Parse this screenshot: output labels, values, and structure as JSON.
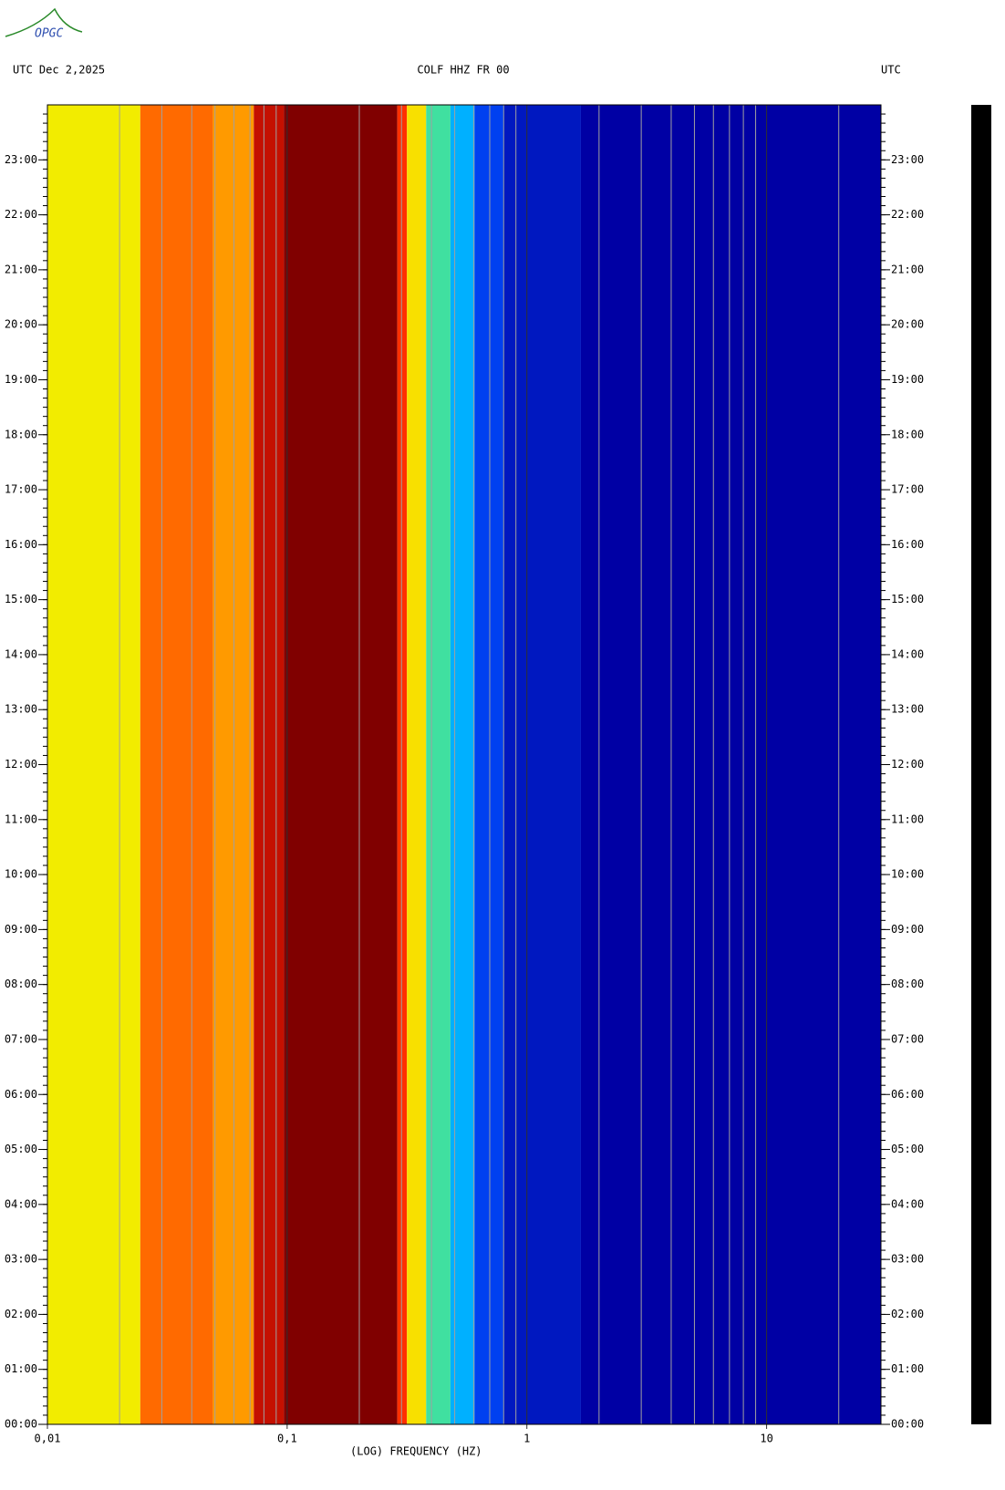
{
  "logo": "OPGC",
  "header": {
    "left": "UTC  Dec 2,2025",
    "center": "COLF HHZ FR 00",
    "right": "UTC"
  },
  "chart_data": {
    "type": "spectrogram",
    "xlabel": "(LOG) FREQUENCY (HZ)",
    "xscale": "log",
    "xlim": [
      0.01,
      30
    ],
    "xticks": [
      {
        "value": 0.01,
        "label": "0,01"
      },
      {
        "value": 0.1,
        "label": "0,1"
      },
      1,
      10
    ],
    "xminor": [
      0.02,
      0.03,
      0.04,
      0.05,
      0.06,
      0.07,
      0.08,
      0.09,
      0.2,
      0.3,
      0.4,
      0.5,
      0.6,
      0.7,
      0.8,
      0.9,
      2,
      3,
      4,
      5,
      6,
      7,
      8,
      9,
      20
    ],
    "ylim": [
      0,
      24
    ],
    "yticks": [
      {
        "value": 0,
        "label": "00:00"
      },
      {
        "value": 1,
        "label": "01:00"
      },
      {
        "value": 2,
        "label": "02:00"
      },
      {
        "value": 3,
        "label": "03:00"
      },
      {
        "value": 4,
        "label": "04:00"
      },
      {
        "value": 5,
        "label": "05:00"
      },
      {
        "value": 6,
        "label": "06:00"
      },
      {
        "value": 7,
        "label": "07:00"
      },
      {
        "value": 8,
        "label": "08:00"
      },
      {
        "value": 9,
        "label": "09:00"
      },
      {
        "value": 10,
        "label": "10:00"
      },
      {
        "value": 11,
        "label": "11:00"
      },
      {
        "value": 12,
        "label": "12:00"
      },
      {
        "value": 13,
        "label": "13:00"
      },
      {
        "value": 14,
        "label": "14:00"
      },
      {
        "value": 15,
        "label": "15:00"
      },
      {
        "value": 16,
        "label": "16:00"
      },
      {
        "value": 17,
        "label": "17:00"
      },
      {
        "value": 18,
        "label": "18:00"
      },
      {
        "value": 19,
        "label": "19:00"
      },
      {
        "value": 20,
        "label": "20:00"
      },
      {
        "value": 21,
        "label": "21:00"
      },
      {
        "value": 22,
        "label": "22:00"
      },
      {
        "value": 23,
        "label": "23:00"
      }
    ],
    "bands": [
      {
        "fmin": 0.01,
        "fmax": 0.0244,
        "color": "#f2ec00"
      },
      {
        "fmin": 0.0244,
        "fmax": 0.049,
        "color": "#ff6a00"
      },
      {
        "fmin": 0.049,
        "fmax": 0.0726,
        "color": "#ff9a00"
      },
      {
        "fmin": 0.0726,
        "fmax": 0.097,
        "color": "#c41000"
      },
      {
        "fmin": 0.097,
        "fmax": 0.288,
        "color": "#800000"
      },
      {
        "fmin": 0.288,
        "fmax": 0.316,
        "color": "#ff3000"
      },
      {
        "fmin": 0.316,
        "fmax": 0.38,
        "color": "#f8e000"
      },
      {
        "fmin": 0.38,
        "fmax": 0.48,
        "color": "#40e0a0"
      },
      {
        "fmin": 0.48,
        "fmax": 0.605,
        "color": "#00b0ff"
      },
      {
        "fmin": 0.605,
        "fmax": 0.8,
        "color": "#0040f0"
      },
      {
        "fmin": 0.8,
        "fmax": 1.68,
        "color": "#0018c0"
      },
      {
        "fmin": 1.68,
        "fmax": 30,
        "color": "#0000a4"
      }
    ]
  }
}
